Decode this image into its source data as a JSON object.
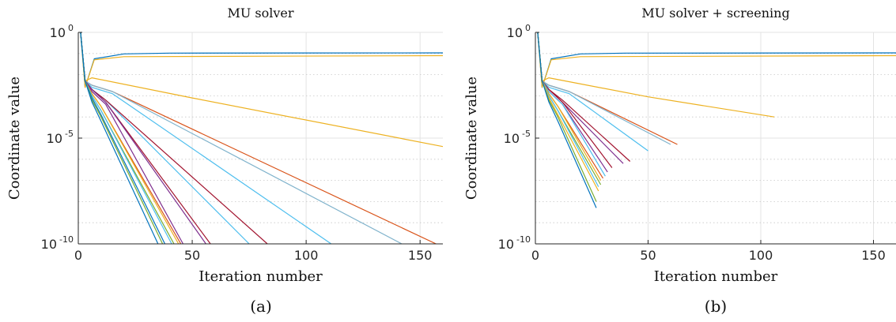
{
  "chart_data": [
    {
      "type": "line",
      "title": "MU solver",
      "xlabel": "Iteration number",
      "ylabel": "Coordinate value",
      "caption": "(a)",
      "xlim": [
        0,
        160
      ],
      "ylim_exponent": [
        -10,
        0
      ],
      "yscale": "log",
      "x_ticks": [
        0,
        50,
        100,
        150
      ],
      "x_tick_labels": [
        "0",
        "50",
        "100",
        "150"
      ],
      "y_ticks_exponent": [
        0,
        -5,
        -10
      ],
      "y_tick_base": "10",
      "y_tick_sups": [
        "0",
        "-5",
        "-10"
      ],
      "grid": true,
      "series": [
        {
          "color": "#0072BD",
          "points": [
            [
              1,
              0
            ],
            [
              3,
              -2.6
            ],
            [
              7,
              -1.25
            ],
            [
              20,
              -1.02
            ],
            [
              40,
              -0.98
            ],
            [
              160,
              -0.97
            ]
          ]
        },
        {
          "color": "#EDB120",
          "points": [
            [
              1,
              0
            ],
            [
              3,
              -2.6
            ],
            [
              7,
              -1.3
            ],
            [
              20,
              -1.15
            ],
            [
              160,
              -1.1
            ]
          ]
        },
        {
          "color": "#EDB120",
          "points": [
            [
              1,
              0
            ],
            [
              3,
              -2.3
            ],
            [
              6,
              -2.15
            ],
            [
              50,
              -3.1
            ],
            [
              160,
              -5.4
            ]
          ]
        },
        {
          "color": "#D95319",
          "points": [
            [
              1,
              0
            ],
            [
              3,
              -2.3
            ],
            [
              6,
              -2.5
            ],
            [
              15,
              -2.8
            ],
            [
              157,
              -10
            ]
          ]
        },
        {
          "color": "#80B3CC",
          "points": [
            [
              1,
              0
            ],
            [
              3,
              -2.3
            ],
            [
              6,
              -2.5
            ],
            [
              15,
              -2.8
            ],
            [
              142,
              -10
            ]
          ]
        },
        {
          "color": "#4DBEEE",
          "points": [
            [
              1,
              0
            ],
            [
              3,
              -2.3
            ],
            [
              6,
              -2.6
            ],
            [
              15,
              -2.9
            ],
            [
              111,
              -10
            ]
          ]
        },
        {
          "color": "#4DBEEE",
          "points": [
            [
              1,
              0
            ],
            [
              3,
              -2.3
            ],
            [
              6,
              -2.7
            ],
            [
              12,
              -3.2
            ],
            [
              75,
              -10
            ]
          ]
        },
        {
          "color": "#A2142F",
          "points": [
            [
              1,
              0
            ],
            [
              3,
              -2.3
            ],
            [
              6,
              -2.7
            ],
            [
              12,
              -3.2
            ],
            [
              83,
              -10
            ]
          ]
        },
        {
          "color": "#A2142F",
          "points": [
            [
              1,
              0
            ],
            [
              3,
              -2.3
            ],
            [
              6,
              -2.7
            ],
            [
              12,
              -3.3
            ],
            [
              58,
              -10
            ]
          ]
        },
        {
          "color": "#7E2F8E",
          "points": [
            [
              1,
              0
            ],
            [
              3,
              -2.3
            ],
            [
              6,
              -2.7
            ],
            [
              12,
              -3.3
            ],
            [
              56,
              -10
            ]
          ]
        },
        {
          "color": "#7E2F8E",
          "points": [
            [
              1,
              0
            ],
            [
              3,
              -2.3
            ],
            [
              6,
              -2.8
            ],
            [
              12,
              -3.4
            ],
            [
              46,
              -10
            ]
          ]
        },
        {
          "color": "#D95319",
          "points": [
            [
              1,
              0
            ],
            [
              3,
              -2.3
            ],
            [
              6,
              -2.9
            ],
            [
              10,
              -3.5
            ],
            [
              45,
              -10
            ]
          ]
        },
        {
          "color": "#EDB120",
          "points": [
            [
              1,
              0
            ],
            [
              3,
              -2.3
            ],
            [
              6,
              -2.9
            ],
            [
              10,
              -3.5
            ],
            [
              44,
              -10
            ]
          ]
        },
        {
          "color": "#77AC30",
          "points": [
            [
              1,
              0
            ],
            [
              3,
              -2.3
            ],
            [
              6,
              -3.0
            ],
            [
              10,
              -3.7
            ],
            [
              42,
              -10
            ]
          ]
        },
        {
          "color": "#4DBEEE",
          "points": [
            [
              1,
              0
            ],
            [
              3,
              -2.3
            ],
            [
              6,
              -3.0
            ],
            [
              10,
              -3.7
            ],
            [
              41,
              -10
            ]
          ]
        },
        {
          "color": "#0072BD",
          "points": [
            [
              1,
              0
            ],
            [
              3,
              -2.3
            ],
            [
              6,
              -3.1
            ],
            [
              10,
              -3.9
            ],
            [
              38,
              -10
            ]
          ]
        },
        {
          "color": "#77AC30",
          "points": [
            [
              1,
              0
            ],
            [
              3,
              -2.3
            ],
            [
              6,
              -3.2
            ],
            [
              10,
              -4.0
            ],
            [
              37,
              -10
            ]
          ]
        },
        {
          "color": "#0072BD",
          "points": [
            [
              1,
              0
            ],
            [
              3,
              -2.3
            ],
            [
              6,
              -3.3
            ],
            [
              10,
              -4.2
            ],
            [
              35,
              -10
            ]
          ]
        }
      ]
    },
    {
      "type": "line",
      "title": "MU solver + screening",
      "xlabel": "Iteration number",
      "ylabel": "Coordinate value",
      "caption": "(b)",
      "xlim": [
        0,
        160
      ],
      "ylim_exponent": [
        -10,
        0
      ],
      "yscale": "log",
      "x_ticks": [
        0,
        50,
        100,
        150
      ],
      "x_tick_labels": [
        "0",
        "50",
        "100",
        "150"
      ],
      "y_ticks_exponent": [
        0,
        -5,
        -10
      ],
      "y_tick_base": "10",
      "y_tick_sups": [
        "0",
        "-5",
        "-10"
      ],
      "grid": true,
      "series": [
        {
          "color": "#0072BD",
          "points": [
            [
              1,
              0
            ],
            [
              3,
              -2.6
            ],
            [
              7,
              -1.25
            ],
            [
              20,
              -1.02
            ],
            [
              40,
              -0.98
            ],
            [
              160,
              -0.97
            ]
          ]
        },
        {
          "color": "#EDB120",
          "points": [
            [
              1,
              0
            ],
            [
              3,
              -2.6
            ],
            [
              7,
              -1.3
            ],
            [
              20,
              -1.15
            ],
            [
              160,
              -1.1
            ]
          ]
        },
        {
          "color": "#EDB120",
          "points": [
            [
              1,
              0
            ],
            [
              3,
              -2.3
            ],
            [
              6,
              -2.15
            ],
            [
              50,
              -3.05
            ],
            [
              106,
              -4.0
            ]
          ]
        },
        {
          "color": "#D95319",
          "points": [
            [
              1,
              0
            ],
            [
              3,
              -2.3
            ],
            [
              6,
              -2.5
            ],
            [
              15,
              -2.8
            ],
            [
              63,
              -5.3
            ]
          ]
        },
        {
          "color": "#80B3CC",
          "points": [
            [
              1,
              0
            ],
            [
              3,
              -2.3
            ],
            [
              6,
              -2.5
            ],
            [
              15,
              -2.8
            ],
            [
              60,
              -5.3
            ]
          ]
        },
        {
          "color": "#4DBEEE",
          "points": [
            [
              1,
              0
            ],
            [
              3,
              -2.3
            ],
            [
              6,
              -2.6
            ],
            [
              15,
              -2.9
            ],
            [
              50,
              -5.6
            ]
          ]
        },
        {
          "color": "#A2142F",
          "points": [
            [
              1,
              0
            ],
            [
              3,
              -2.3
            ],
            [
              6,
              -2.7
            ],
            [
              12,
              -3.2
            ],
            [
              42,
              -6.1
            ]
          ]
        },
        {
          "color": "#7E2F8E",
          "points": [
            [
              1,
              0
            ],
            [
              3,
              -2.3
            ],
            [
              6,
              -2.7
            ],
            [
              12,
              -3.3
            ],
            [
              39,
              -6.2
            ]
          ]
        },
        {
          "color": "#A2142F",
          "points": [
            [
              1,
              0
            ],
            [
              3,
              -2.3
            ],
            [
              6,
              -2.7
            ],
            [
              12,
              -3.3
            ],
            [
              34,
              -6.4
            ]
          ]
        },
        {
          "color": "#7E2F8E",
          "points": [
            [
              1,
              0
            ],
            [
              3,
              -2.3
            ],
            [
              6,
              -2.8
            ],
            [
              12,
              -3.4
            ],
            [
              32,
              -6.6
            ]
          ]
        },
        {
          "color": "#4DBEEE",
          "points": [
            [
              1,
              0
            ],
            [
              3,
              -2.3
            ],
            [
              6,
              -2.8
            ],
            [
              12,
              -3.4
            ],
            [
              31,
              -6.8
            ]
          ]
        },
        {
          "color": "#D95319",
          "points": [
            [
              1,
              0
            ],
            [
              3,
              -2.3
            ],
            [
              6,
              -2.9
            ],
            [
              10,
              -3.5
            ],
            [
              30,
              -6.9
            ]
          ]
        },
        {
          "color": "#EDB120",
          "points": [
            [
              1,
              0
            ],
            [
              3,
              -2.3
            ],
            [
              6,
              -2.9
            ],
            [
              10,
              -3.5
            ],
            [
              29,
              -7.0
            ]
          ]
        },
        {
          "color": "#77AC30",
          "points": [
            [
              1,
              0
            ],
            [
              3,
              -2.3
            ],
            [
              6,
              -3.0
            ],
            [
              10,
              -3.7
            ],
            [
              29,
              -7.2
            ]
          ]
        },
        {
          "color": "#4DBEEE",
          "points": [
            [
              1,
              0
            ],
            [
              3,
              -2.3
            ],
            [
              6,
              -3.0
            ],
            [
              10,
              -3.7
            ],
            [
              28,
              -7.3
            ]
          ]
        },
        {
          "color": "#EDB120",
          "points": [
            [
              1,
              0
            ],
            [
              3,
              -2.3
            ],
            [
              6,
              -3.1
            ],
            [
              10,
              -3.9
            ],
            [
              28,
              -7.5
            ]
          ]
        },
        {
          "color": "#77AC30",
          "points": [
            [
              1,
              0
            ],
            [
              3,
              -2.3
            ],
            [
              6,
              -3.2
            ],
            [
              10,
              -4.0
            ],
            [
              27,
              -8.0
            ]
          ]
        },
        {
          "color": "#0072BD",
          "points": [
            [
              1,
              0
            ],
            [
              3,
              -2.3
            ],
            [
              6,
              -3.3
            ],
            [
              10,
              -4.2
            ],
            [
              27,
              -8.3
            ]
          ]
        }
      ]
    }
  ]
}
